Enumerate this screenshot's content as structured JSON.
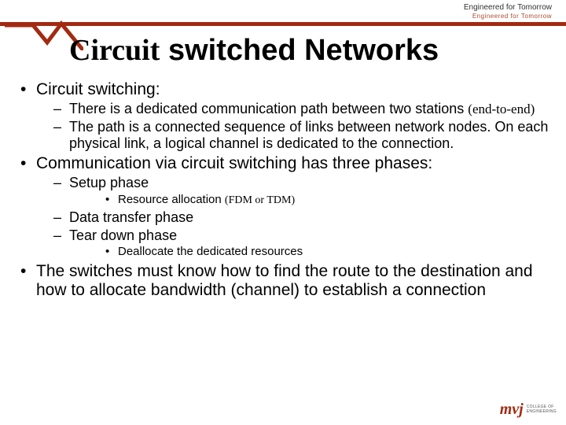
{
  "header": {
    "tagline": "Engineered for Tomorrow",
    "subtagline": "Engineered for Tomorrow",
    "bar_color": "#a32a12",
    "zigzag_stroke": "#a32a12",
    "zigzag_width": 5
  },
  "title": {
    "serif_part": "Circuit",
    "sans_part": " switched Networks"
  },
  "bullets": [
    {
      "text": "Circuit switching:",
      "children": [
        {
          "text_html": "There is a dedicated communication path between two stations <span class=\"serif-inline\">(end-to-end)</span>"
        },
        {
          "text": "The path is a connected sequence of links between network nodes. On each physical link, a logical channel is dedicated to the connection."
        }
      ]
    },
    {
      "text": "Communication via circuit switching has three phases:",
      "children": [
        {
          "text": "Setup phase",
          "children": [
            {
              "text_html": "Resource allocation <span class=\"serif-inline-sm\">(FDM or TDM)</span>"
            }
          ]
        },
        {
          "text": "Data transfer phase"
        },
        {
          "text": "Tear down phase",
          "children": [
            {
              "text": "Deallocate the dedicated resources"
            }
          ]
        }
      ]
    },
    {
      "text": "The switches must know how to find the route to the destination and how to allocate bandwidth (channel) to establish a connection"
    }
  ],
  "footer": {
    "logo_text": "mvj",
    "logo_sub1": "COLLEGE OF",
    "logo_sub2": "ENGINEERING",
    "logo_color": "#a32a12"
  }
}
